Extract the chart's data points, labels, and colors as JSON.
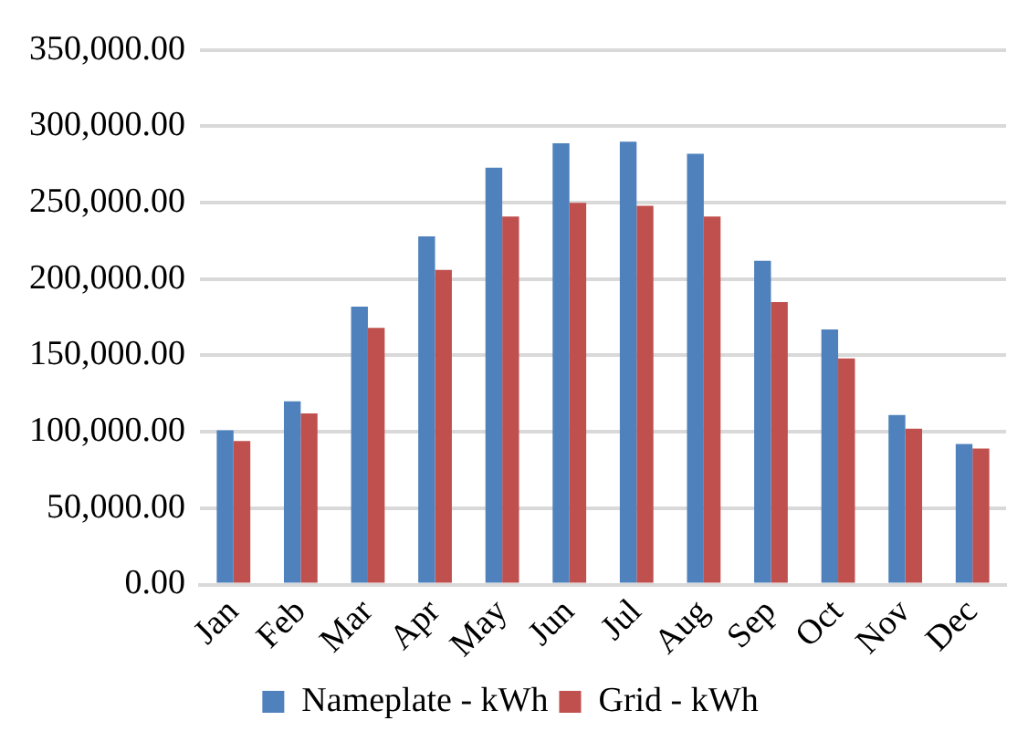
{
  "chart_data": {
    "type": "bar",
    "categories": [
      "Jan",
      "Feb",
      "Mar",
      "Apr",
      "May",
      "Jun",
      "Jul",
      "Aug",
      "Sep",
      "Oct",
      "Nov",
      "Dec"
    ],
    "series": [
      {
        "name": "Nameplate - kWh",
        "color": "#4f81bd",
        "values": [
          101000,
          120000,
          182000,
          228000,
          273000,
          289000,
          290000,
          282000,
          212000,
          167000,
          111000,
          92000
        ]
      },
      {
        "name": "Grid - kWh",
        "color": "#c0504d",
        "values": [
          94000,
          112000,
          168000,
          206000,
          241000,
          250000,
          248000,
          241000,
          185000,
          148000,
          102000,
          89000
        ]
      }
    ],
    "ylim": [
      0,
      350000
    ],
    "yticks": [
      {
        "value": 0,
        "label": "0.00"
      },
      {
        "value": 50000,
        "label": "50,000.00"
      },
      {
        "value": 100000,
        "label": "100,000.00"
      },
      {
        "value": 150000,
        "label": "150,000.00"
      },
      {
        "value": 200000,
        "label": "200,000.00"
      },
      {
        "value": 250000,
        "label": "250,000.00"
      },
      {
        "value": 300000,
        "label": "300,000.00"
      },
      {
        "value": 350000,
        "label": "350,000.00"
      }
    ],
    "grid": "y",
    "legend": "bottom"
  }
}
